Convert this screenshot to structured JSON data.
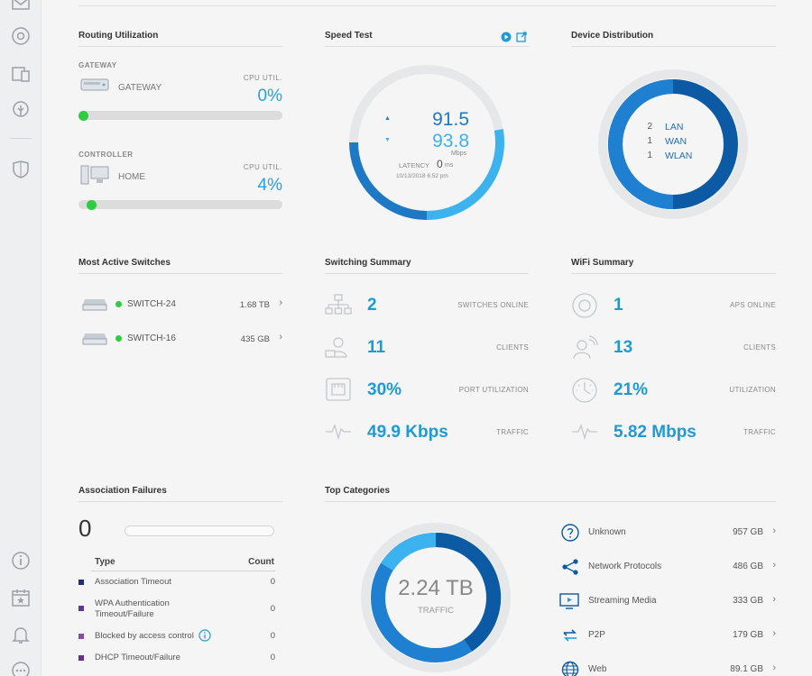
{
  "colors": {
    "accent": "#27a0e0",
    "dark_blue": "#0b5aa3",
    "green": "#2ecc40"
  },
  "sidebar": {
    "top_icons": [
      "mail-icon",
      "radio-icon",
      "devices-icon",
      "map-pin-icon",
      "shield-icon"
    ],
    "bottom_icons": [
      "info-icon",
      "calendar-star-icon",
      "bell-icon",
      "more-icon"
    ]
  },
  "routing": {
    "title": "Routing Utilization",
    "gateway": {
      "section": "GATEWAY",
      "name": "GATEWAY",
      "cpu_label": "CPU UTIL.",
      "cpu_value": "0%",
      "cpu_fraction": 0.0
    },
    "controller": {
      "section": "CONTROLLER",
      "name": "HOME",
      "cpu_label": "CPU UTIL.",
      "cpu_value": "4%",
      "cpu_fraction": 0.04
    }
  },
  "speed": {
    "title": "Speed Test",
    "download": "91.5",
    "upload": "93.8",
    "unit": "Mbps",
    "latency_label": "LATENCY",
    "latency_value": "0",
    "latency_unit": "ms",
    "timestamp": "10/13/2018 6:52 pm"
  },
  "device_distribution": {
    "title": "Device Distribution",
    "items": [
      {
        "count": "2",
        "label": "LAN"
      },
      {
        "count": "1",
        "label": "WAN"
      },
      {
        "count": "1",
        "label": "WLAN"
      }
    ]
  },
  "switches": {
    "title": "Most Active Switches",
    "items": [
      {
        "name": "SWITCH-24",
        "value": "1.68 TB"
      },
      {
        "name": "SWITCH-16",
        "value": "435 GB"
      }
    ]
  },
  "switching": {
    "title": "Switching Summary",
    "stats": [
      {
        "icon": "topology-icon",
        "value": "2",
        "label": "SWITCHES ONLINE"
      },
      {
        "icon": "clients-icon",
        "value": "11",
        "label": "CLIENTS"
      },
      {
        "icon": "port-icon",
        "value": "30%",
        "label": "PORT UTILIZATION"
      },
      {
        "icon": "traffic-icon",
        "value": "49.9 Kbps",
        "label": "TRAFFIC"
      }
    ]
  },
  "wifi": {
    "title": "WiFi Summary",
    "stats": [
      {
        "icon": "ap-icon",
        "value": "1",
        "label": "APS ONLINE"
      },
      {
        "icon": "wireless-client-icon",
        "value": "13",
        "label": "CLIENTS"
      },
      {
        "icon": "gauge-icon",
        "value": "21%",
        "label": "UTILIZATION"
      },
      {
        "icon": "traffic-icon",
        "value": "5.82 Mbps",
        "label": "TRAFFIC"
      }
    ]
  },
  "association": {
    "title": "Association Failures",
    "total": "0",
    "col_type": "Type",
    "col_count": "Count",
    "rows": [
      {
        "type": "Association Timeout",
        "count": "0",
        "color": "#1f2d7a"
      },
      {
        "type": "WPA Authentication Timeout/Failure",
        "count": "0",
        "color": "#5b3a8e"
      },
      {
        "type": "Blocked by access control",
        "count": "0",
        "color": "#8e4aa0"
      },
      {
        "type": "DHCP Timeout/Failure",
        "count": "0",
        "color": "#6b2f8a"
      }
    ]
  },
  "categories": {
    "title": "Top Categories",
    "total": "2.24 TB",
    "total_label": "TRAFFIC",
    "items": [
      {
        "icon": "question-icon",
        "label": "Unknown",
        "value": "957 GB"
      },
      {
        "icon": "share-icon",
        "label": "Network Protocols",
        "value": "486 GB"
      },
      {
        "icon": "monitor-icon",
        "label": "Streaming Media",
        "value": "333 GB"
      },
      {
        "icon": "p2p-icon",
        "label": "P2P",
        "value": "179 GB"
      },
      {
        "icon": "globe-icon",
        "label": "Web",
        "value": "89.1 GB"
      }
    ]
  }
}
